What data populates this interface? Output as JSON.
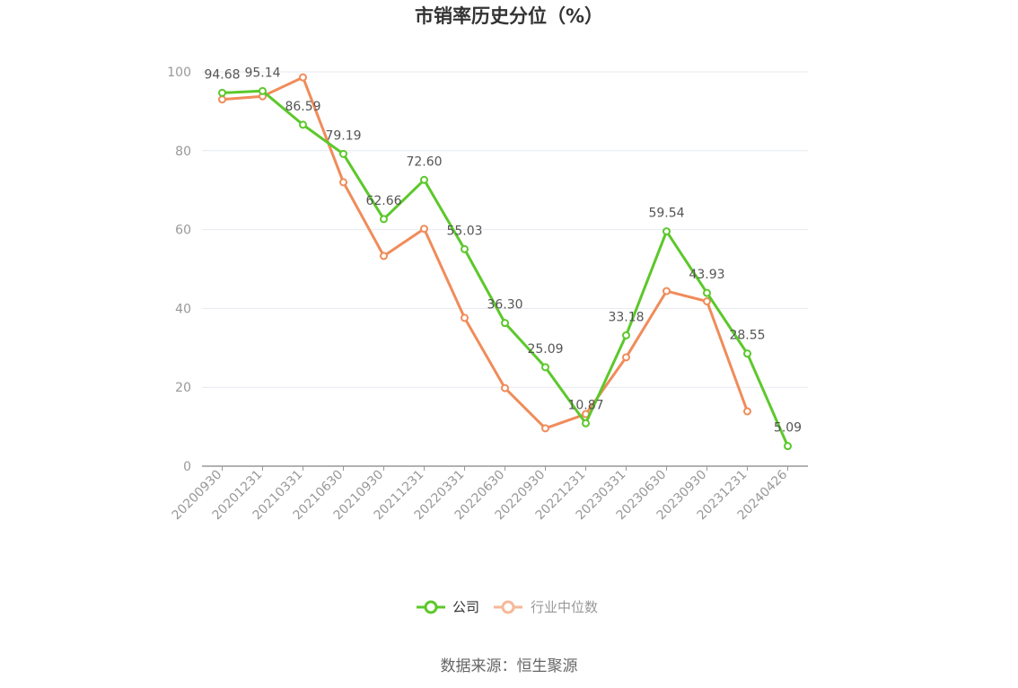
{
  "chart_data": {
    "type": "line",
    "title": "市销率历史分位（%）",
    "categories": [
      "20200930",
      "20201231",
      "20210331",
      "20210630",
      "20210930",
      "20211231",
      "20220331",
      "20220630",
      "20220930",
      "20221231",
      "20230331",
      "20230630",
      "20230930",
      "20231231",
      "20240426"
    ],
    "ylim": [
      0,
      100
    ],
    "yticks": [
      0,
      20,
      40,
      60,
      80,
      100
    ],
    "grid": true,
    "legend_position": "bottom",
    "series": [
      {
        "name": "公司",
        "color": "#5cc82b",
        "values": [
          94.68,
          95.14,
          86.59,
          79.19,
          62.66,
          72.6,
          55.03,
          36.3,
          25.09,
          10.87,
          33.18,
          59.54,
          43.93,
          28.55,
          5.09
        ],
        "labels": [
          "94.68",
          "95.14",
          "86.59",
          "79.19",
          "62.66",
          "72.60",
          "55.03",
          "36.30",
          "25.09",
          "10.87",
          "33.18",
          "59.54",
          "43.93",
          "28.55",
          "5.09"
        ]
      },
      {
        "name": "行业中位数",
        "color": "#f08c5a",
        "values": [
          93.0,
          93.8,
          98.6,
          72.0,
          53.3,
          60.2,
          37.6,
          19.8,
          9.6,
          13.2,
          27.6,
          44.4,
          41.8,
          13.9,
          null
        ]
      }
    ]
  },
  "source": "数据来源：恒生聚源"
}
